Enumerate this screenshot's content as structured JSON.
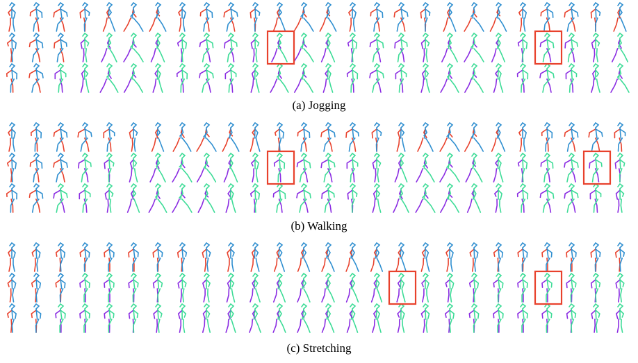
{
  "figure": {
    "panels": [
      {
        "caption": "(a) Jogging"
      },
      {
        "caption": "(b) Walking"
      },
      {
        "caption": "(c) Stretching"
      }
    ]
  }
}
